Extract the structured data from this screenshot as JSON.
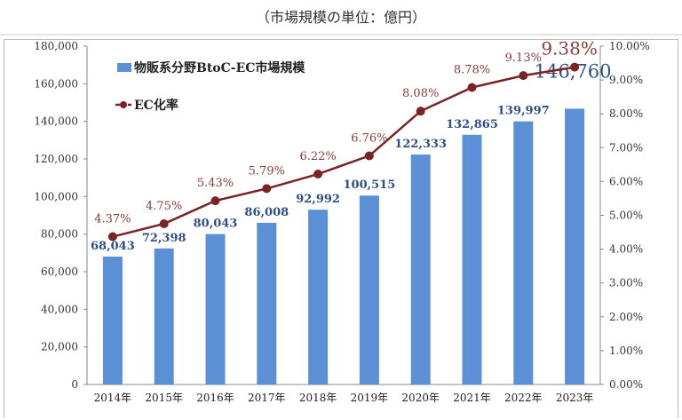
{
  "unit_note": "（市場規模の単位：億円）",
  "chart_data": {
    "type": "bar+line",
    "categories": [
      "2014年",
      "2015年",
      "2016年",
      "2017年",
      "2018年",
      "2019年",
      "2020年",
      "2021年",
      "2022年",
      "2023年"
    ],
    "series": [
      {
        "name": "物販系分野BtoC-EC市場規模",
        "type": "bar",
        "axis": "left",
        "color": "#5b8fd6",
        "label_color": "#2f4f86",
        "values": [
          68043,
          72398,
          80043,
          86008,
          92992,
          100515,
          122333,
          132865,
          139997,
          146760
        ],
        "labels": [
          "68,043",
          "72,398",
          "80,043",
          "86,008",
          "92,992",
          "100,515",
          "122,333",
          "132,865",
          "139,997",
          "146,760"
        ]
      },
      {
        "name": "EC化率",
        "type": "line",
        "axis": "right",
        "color": "#7b2424",
        "label_color": "#8b3a3a",
        "values": [
          4.37,
          4.75,
          5.43,
          5.79,
          6.22,
          6.76,
          8.08,
          8.78,
          9.13,
          9.38
        ],
        "labels": [
          "4.37%",
          "4.75%",
          "5.43%",
          "5.79%",
          "6.22%",
          "6.76%",
          "8.08%",
          "8.78%",
          "9.13%",
          "9.38%"
        ]
      }
    ],
    "left_axis": {
      "range": [
        0,
        180000
      ],
      "ticks": [
        "0",
        "20,000",
        "40,000",
        "60,000",
        "80,000",
        "100,000",
        "120,000",
        "140,000",
        "160,000",
        "180,000"
      ]
    },
    "right_axis": {
      "range": [
        0,
        10
      ],
      "ticks": [
        "0.00%",
        "1.00%",
        "2.00%",
        "3.00%",
        "4.00%",
        "5.00%",
        "6.00%",
        "7.00%",
        "8.00%",
        "9.00%",
        "10.00%"
      ]
    },
    "grid": false,
    "legend": "top-left"
  }
}
